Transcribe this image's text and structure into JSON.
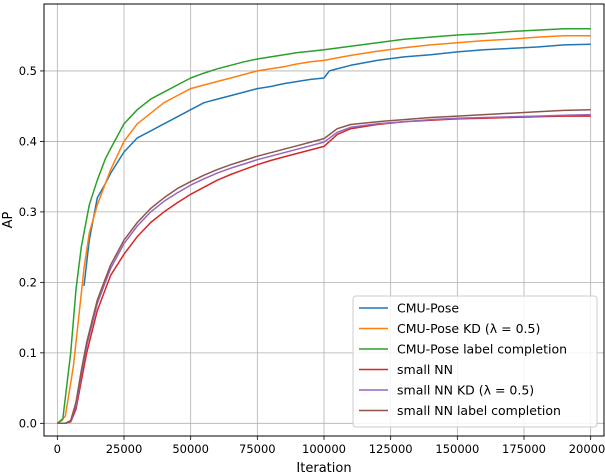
{
  "chart_data": {
    "type": "line",
    "title": "",
    "xlabel": "Iteration",
    "ylabel": "AP",
    "xlim": [
      -5000,
      205000
    ],
    "ylim": [
      -0.018,
      0.595
    ],
    "grid": true,
    "legend_position": "bottom-right",
    "x_ticks": [
      0,
      25000,
      50000,
      75000,
      100000,
      125000,
      150000,
      175000,
      200000
    ],
    "x_tick_labels": [
      "0",
      "25000",
      "50000",
      "75000",
      "100000",
      "125000",
      "150000",
      "175000",
      "200000"
    ],
    "y_ticks": [
      0.0,
      0.1,
      0.2,
      0.3,
      0.4,
      0.5
    ],
    "y_tick_labels": [
      "0.0",
      "0.1",
      "0.2",
      "0.3",
      "0.4",
      "0.5"
    ],
    "series": [
      {
        "name": "CMU-Pose",
        "color": "#1f77b4",
        "points": [
          [
            10000,
            0.195
          ],
          [
            12000,
            0.26
          ],
          [
            15000,
            0.32
          ],
          [
            18000,
            0.34
          ],
          [
            20000,
            0.355
          ],
          [
            25000,
            0.385
          ],
          [
            30000,
            0.405
          ],
          [
            35000,
            0.415
          ],
          [
            40000,
            0.425
          ],
          [
            45000,
            0.435
          ],
          [
            50000,
            0.445
          ],
          [
            55000,
            0.455
          ],
          [
            60000,
            0.46
          ],
          [
            65000,
            0.465
          ],
          [
            70000,
            0.47
          ],
          [
            75000,
            0.475
          ],
          [
            80000,
            0.478
          ],
          [
            85000,
            0.482
          ],
          [
            90000,
            0.485
          ],
          [
            95000,
            0.488
          ],
          [
            100000,
            0.49
          ],
          [
            102000,
            0.5
          ],
          [
            110000,
            0.508
          ],
          [
            120000,
            0.515
          ],
          [
            130000,
            0.52
          ],
          [
            140000,
            0.523
          ],
          [
            150000,
            0.527
          ],
          [
            160000,
            0.53
          ],
          [
            170000,
            0.532
          ],
          [
            180000,
            0.534
          ],
          [
            190000,
            0.537
          ],
          [
            200000,
            0.538
          ]
        ]
      },
      {
        "name": "CMU-Pose KD ($\\lambda = 0.5$)",
        "label_text": "CMU-Pose KD (λ = 0.5)",
        "color": "#ff7f0e",
        "points": [
          [
            0,
            0.0
          ],
          [
            3000,
            0.01
          ],
          [
            6000,
            0.08
          ],
          [
            8000,
            0.15
          ],
          [
            10000,
            0.22
          ],
          [
            12000,
            0.27
          ],
          [
            15000,
            0.31
          ],
          [
            18000,
            0.34
          ],
          [
            20000,
            0.36
          ],
          [
            25000,
            0.4
          ],
          [
            30000,
            0.425
          ],
          [
            35000,
            0.44
          ],
          [
            40000,
            0.455
          ],
          [
            45000,
            0.465
          ],
          [
            50000,
            0.475
          ],
          [
            55000,
            0.48
          ],
          [
            60000,
            0.485
          ],
          [
            65000,
            0.49
          ],
          [
            70000,
            0.495
          ],
          [
            75000,
            0.5
          ],
          [
            80000,
            0.503
          ],
          [
            85000,
            0.506
          ],
          [
            90000,
            0.51
          ],
          [
            95000,
            0.513
          ],
          [
            100000,
            0.515
          ],
          [
            110000,
            0.522
          ],
          [
            120000,
            0.528
          ],
          [
            130000,
            0.533
          ],
          [
            140000,
            0.537
          ],
          [
            150000,
            0.54
          ],
          [
            160000,
            0.543
          ],
          [
            170000,
            0.545
          ],
          [
            180000,
            0.548
          ],
          [
            190000,
            0.55
          ],
          [
            200000,
            0.55
          ]
        ]
      },
      {
        "name": "CMU-Pose label completion",
        "color": "#2ca02c",
        "points": [
          [
            0,
            0.0
          ],
          [
            2000,
            0.005
          ],
          [
            5000,
            0.1
          ],
          [
            7000,
            0.19
          ],
          [
            9000,
            0.25
          ],
          [
            12000,
            0.31
          ],
          [
            15000,
            0.345
          ],
          [
            18000,
            0.375
          ],
          [
            20000,
            0.39
          ],
          [
            25000,
            0.425
          ],
          [
            30000,
            0.445
          ],
          [
            35000,
            0.46
          ],
          [
            40000,
            0.47
          ],
          [
            45000,
            0.48
          ],
          [
            50000,
            0.49
          ],
          [
            55000,
            0.497
          ],
          [
            60000,
            0.503
          ],
          [
            65000,
            0.508
          ],
          [
            70000,
            0.513
          ],
          [
            75000,
            0.517
          ],
          [
            80000,
            0.52
          ],
          [
            85000,
            0.523
          ],
          [
            90000,
            0.526
          ],
          [
            95000,
            0.528
          ],
          [
            100000,
            0.53
          ],
          [
            110000,
            0.535
          ],
          [
            120000,
            0.54
          ],
          [
            130000,
            0.545
          ],
          [
            140000,
            0.548
          ],
          [
            150000,
            0.551
          ],
          [
            160000,
            0.553
          ],
          [
            170000,
            0.556
          ],
          [
            180000,
            0.558
          ],
          [
            190000,
            0.56
          ],
          [
            200000,
            0.56
          ]
        ]
      },
      {
        "name": "small NN",
        "color": "#d62728",
        "points": [
          [
            0,
            0.0
          ],
          [
            3000,
            0.0
          ],
          [
            5000,
            0.002
          ],
          [
            7000,
            0.02
          ],
          [
            9000,
            0.06
          ],
          [
            11000,
            0.1
          ],
          [
            13000,
            0.13
          ],
          [
            15000,
            0.16
          ],
          [
            18000,
            0.19
          ],
          [
            20000,
            0.21
          ],
          [
            25000,
            0.24
          ],
          [
            30000,
            0.265
          ],
          [
            35000,
            0.285
          ],
          [
            40000,
            0.3
          ],
          [
            45000,
            0.313
          ],
          [
            50000,
            0.325
          ],
          [
            55000,
            0.335
          ],
          [
            60000,
            0.345
          ],
          [
            65000,
            0.353
          ],
          [
            70000,
            0.36
          ],
          [
            75000,
            0.367
          ],
          [
            80000,
            0.373
          ],
          [
            85000,
            0.378
          ],
          [
            90000,
            0.383
          ],
          [
            95000,
            0.388
          ],
          [
            100000,
            0.393
          ],
          [
            105000,
            0.41
          ],
          [
            110000,
            0.418
          ],
          [
            120000,
            0.424
          ],
          [
            130000,
            0.428
          ],
          [
            140000,
            0.43
          ],
          [
            150000,
            0.432
          ],
          [
            160000,
            0.433
          ],
          [
            170000,
            0.434
          ],
          [
            180000,
            0.435
          ],
          [
            190000,
            0.436
          ],
          [
            200000,
            0.436
          ]
        ]
      },
      {
        "name": "small NN KD ($\\lambda = 0.5$)",
        "label_text": "small NN KD (λ = 0.5)",
        "color": "#9467bd",
        "points": [
          [
            0,
            0.0
          ],
          [
            3000,
            0.0
          ],
          [
            5000,
            0.003
          ],
          [
            7000,
            0.025
          ],
          [
            9000,
            0.07
          ],
          [
            11000,
            0.11
          ],
          [
            13000,
            0.14
          ],
          [
            15000,
            0.17
          ],
          [
            18000,
            0.2
          ],
          [
            20000,
            0.22
          ],
          [
            25000,
            0.255
          ],
          [
            30000,
            0.28
          ],
          [
            35000,
            0.3
          ],
          [
            40000,
            0.315
          ],
          [
            45000,
            0.327
          ],
          [
            50000,
            0.338
          ],
          [
            55000,
            0.347
          ],
          [
            60000,
            0.355
          ],
          [
            65000,
            0.362
          ],
          [
            70000,
            0.368
          ],
          [
            75000,
            0.374
          ],
          [
            80000,
            0.379
          ],
          [
            85000,
            0.384
          ],
          [
            90000,
            0.389
          ],
          [
            95000,
            0.394
          ],
          [
            100000,
            0.399
          ],
          [
            105000,
            0.413
          ],
          [
            110000,
            0.42
          ],
          [
            120000,
            0.425
          ],
          [
            130000,
            0.428
          ],
          [
            140000,
            0.431
          ],
          [
            150000,
            0.433
          ],
          [
            160000,
            0.434
          ],
          [
            170000,
            0.435
          ],
          [
            180000,
            0.436
          ],
          [
            190000,
            0.437
          ],
          [
            200000,
            0.438
          ]
        ]
      },
      {
        "name": "small NN label completion",
        "color": "#8c564b",
        "points": [
          [
            0,
            0.0
          ],
          [
            3000,
            0.0
          ],
          [
            5000,
            0.004
          ],
          [
            7000,
            0.03
          ],
          [
            9000,
            0.075
          ],
          [
            11000,
            0.115
          ],
          [
            13000,
            0.145
          ],
          [
            15000,
            0.175
          ],
          [
            18000,
            0.205
          ],
          [
            20000,
            0.225
          ],
          [
            25000,
            0.26
          ],
          [
            30000,
            0.285
          ],
          [
            35000,
            0.305
          ],
          [
            40000,
            0.32
          ],
          [
            45000,
            0.333
          ],
          [
            50000,
            0.343
          ],
          [
            55000,
            0.352
          ],
          [
            60000,
            0.36
          ],
          [
            65000,
            0.367
          ],
          [
            70000,
            0.373
          ],
          [
            75000,
            0.379
          ],
          [
            80000,
            0.384
          ],
          [
            85000,
            0.389
          ],
          [
            90000,
            0.394
          ],
          [
            95000,
            0.399
          ],
          [
            100000,
            0.404
          ],
          [
            105000,
            0.418
          ],
          [
            110000,
            0.424
          ],
          [
            120000,
            0.428
          ],
          [
            130000,
            0.431
          ],
          [
            140000,
            0.434
          ],
          [
            150000,
            0.436
          ],
          [
            160000,
            0.438
          ],
          [
            170000,
            0.44
          ],
          [
            180000,
            0.442
          ],
          [
            190000,
            0.444
          ],
          [
            200000,
            0.445
          ]
        ]
      }
    ]
  }
}
